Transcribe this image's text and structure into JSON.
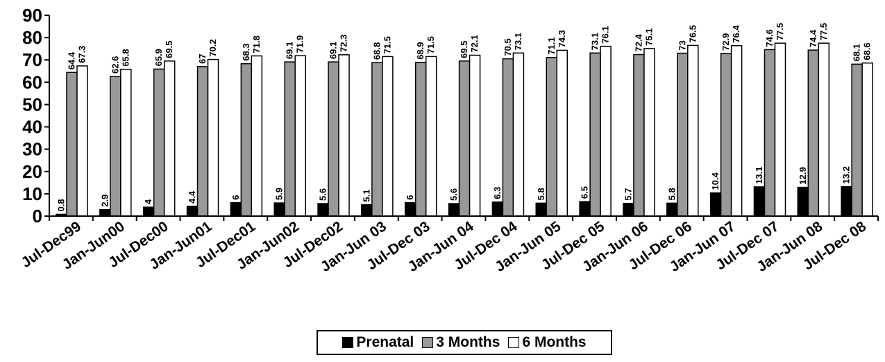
{
  "chart_data": {
    "type": "bar",
    "title": "",
    "xlabel": "",
    "ylabel": "",
    "ylim": [
      0,
      90
    ],
    "yticks": [
      0,
      10,
      20,
      30,
      40,
      50,
      60,
      70,
      80,
      90
    ],
    "grid": false,
    "legend_position": "bottom",
    "categories": [
      "Jul-Dec99",
      "Jan-Jun00",
      "Jul-Dec00",
      "Jan-Jun01",
      "Jul-Dec01",
      "Jan-Jun02",
      "Jul-Dec02",
      "Jan-Jun 03",
      "Jul-Dec 03",
      "Jan-Jun 04",
      "Jul-Dec 04",
      "Jan-Jun 05",
      "Jul-Dec 05",
      "Jan-Jun 06",
      "Jul-Dec 06",
      "Jan-Jun 07",
      "Jul-Dec 07",
      "Jan-Jun 08",
      "Jul-Dec 08"
    ],
    "series": [
      {
        "name": "Prenatal",
        "color": "#000000",
        "values": [
          0.8,
          2.9,
          4,
          4.4,
          6,
          5.9,
          5.6,
          5.1,
          6,
          5.6,
          6.3,
          5.8,
          6.5,
          5.7,
          5.8,
          10.4,
          13.1,
          12.9,
          13.2
        ]
      },
      {
        "name": "3 Months",
        "color": "#999999",
        "values": [
          64.4,
          62.6,
          65.9,
          67,
          68.3,
          69.1,
          69.1,
          68.8,
          68.9,
          69.5,
          70.5,
          71.1,
          73.1,
          72.4,
          73,
          72.9,
          74.6,
          74.4,
          68.1
        ]
      },
      {
        "name": "6 Months",
        "color": "#ffffff",
        "values": [
          67.3,
          65.8,
          69.5,
          70.2,
          71.8,
          71.9,
          72.3,
          71.5,
          71.5,
          72.1,
          73.1,
          74.3,
          76.1,
          75.1,
          76.5,
          76.4,
          77.5,
          77.5,
          68.6
        ]
      }
    ]
  }
}
